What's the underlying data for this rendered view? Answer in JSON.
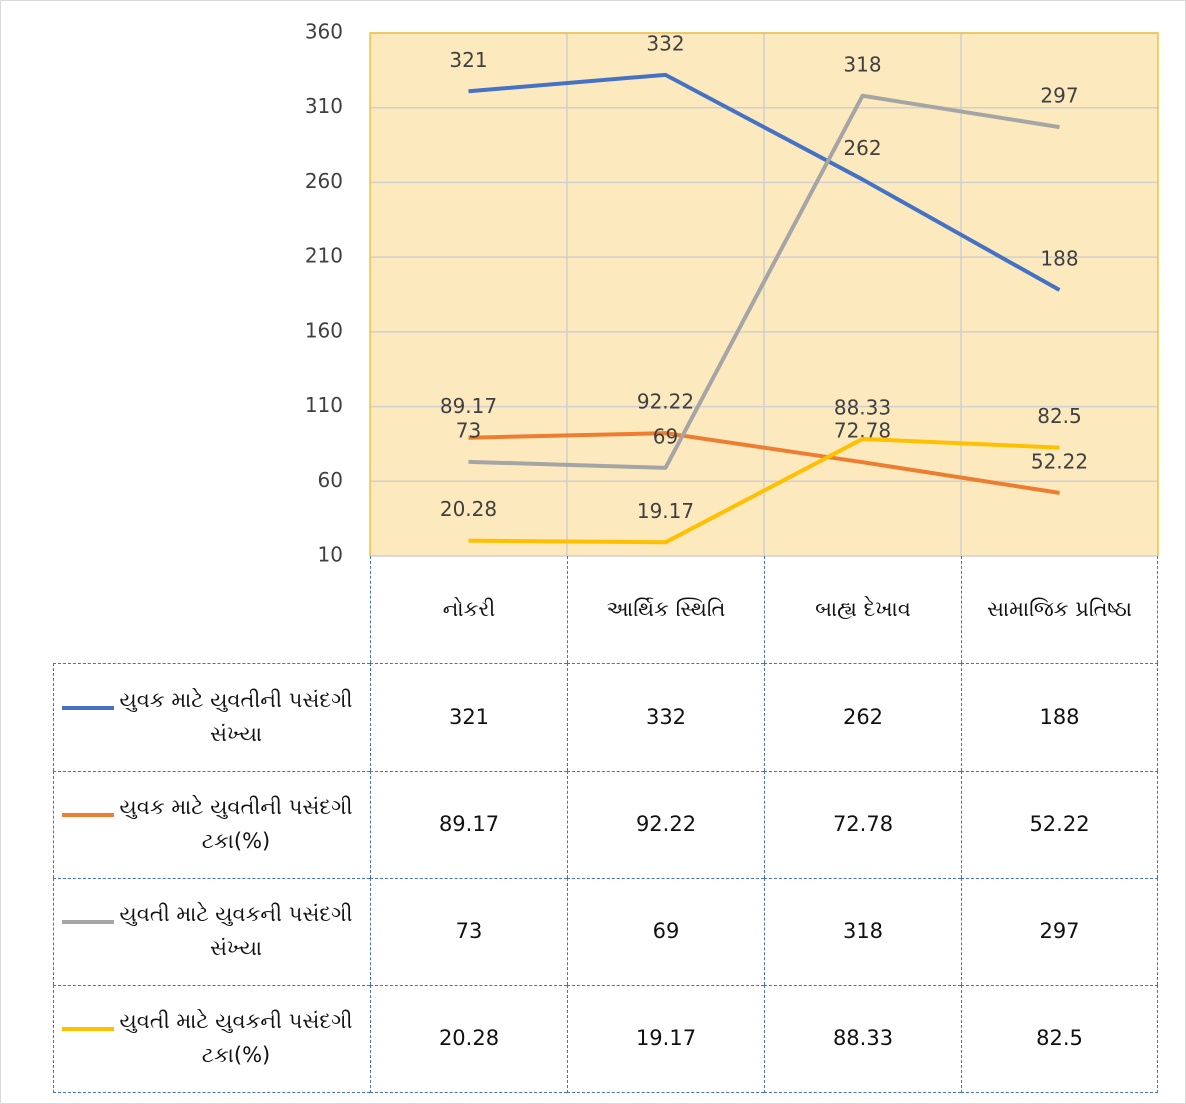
{
  "chart_data": {
    "type": "line",
    "categories": [
      "નોકરી",
      "આર્થિક સ્થિતિ",
      "બાહ્ય દેખાવ",
      "સામાજિક પ્રતિષ્ઠા"
    ],
    "series": [
      {
        "name": "યુવક માટે યુવતીની પસંદગી સંખ્યા",
        "color": "#4472c4",
        "values": [
          321,
          332,
          262,
          188
        ]
      },
      {
        "name": "યુવક માટે યુવતીની પસંદગી ટકા(%)",
        "color": "#ed7d31",
        "values": [
          89.17,
          92.22,
          72.78,
          52.22
        ]
      },
      {
        "name": "યુવતી માટે યુવકની પસંદગી સંખ્યા",
        "color": "#a5a5a5",
        "values": [
          73,
          69,
          318,
          297
        ]
      },
      {
        "name": "યુવતી માટે યુવકની પસંદગી ટકા(%)",
        "color": "#ffc000",
        "values": [
          20.28,
          19.17,
          88.33,
          82.5
        ]
      }
    ],
    "ylim": [
      10,
      360
    ],
    "yticks": [
      10,
      60,
      110,
      160,
      210,
      260,
      310,
      360
    ],
    "grid": true
  }
}
